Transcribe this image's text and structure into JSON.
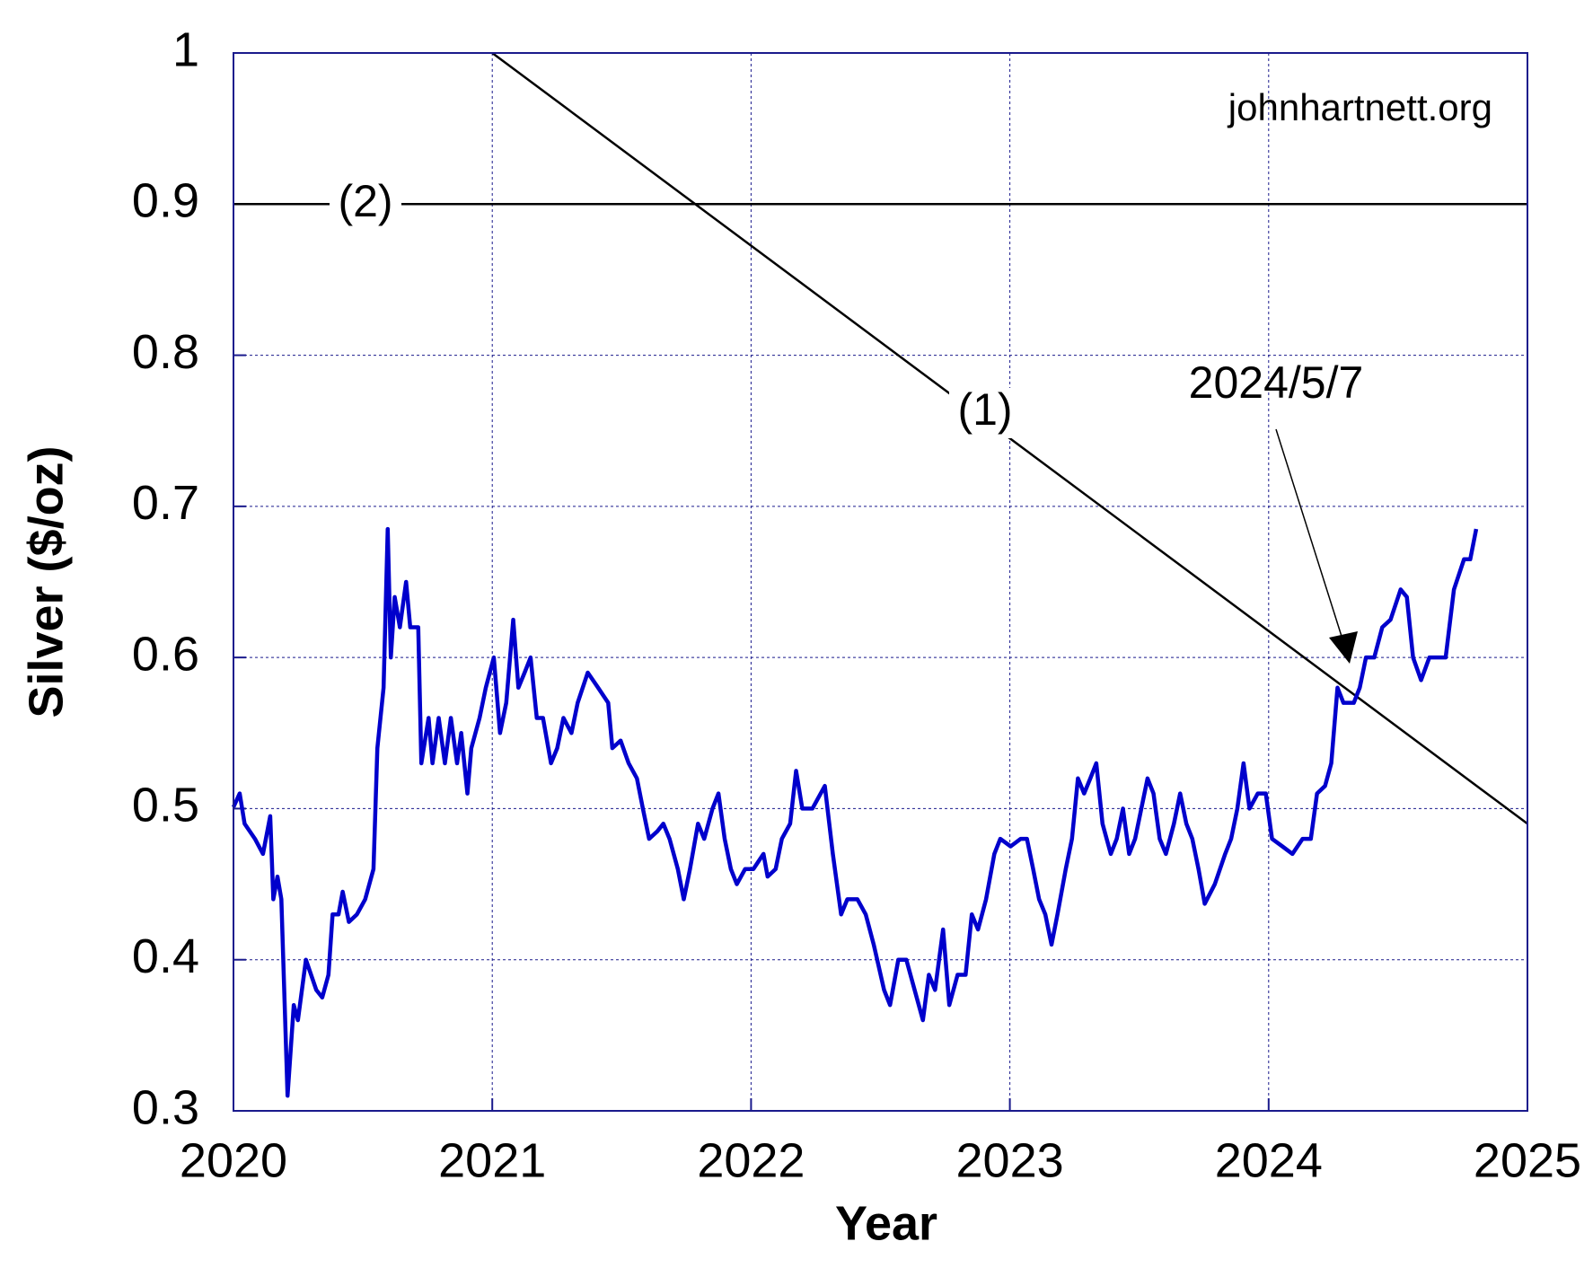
{
  "chart_data": {
    "type": "line",
    "x_label": "Year",
    "y_label": "Silver ($/oz)",
    "xlim": [
      2020,
      2025
    ],
    "ylim": [
      0.3,
      1
    ],
    "xticks": [
      2020,
      2021,
      2022,
      2023,
      2024,
      2025
    ],
    "yticks": [
      0.3,
      0.4,
      0.5,
      0.6,
      0.7,
      0.8,
      0.9,
      1
    ],
    "grid": true,
    "annotations": {
      "source": "johnhartnett.org",
      "date": "2024/5/7"
    },
    "series": [
      {
        "name": "(1)",
        "color": "#000000",
        "x": [
          2021,
          2025
        ],
        "values": [
          1.0,
          0.49
        ]
      },
      {
        "name": "(2)",
        "color": "#000000",
        "x": [
          2020,
          2025
        ],
        "values": [
          0.9,
          0.9
        ]
      },
      {
        "name": "Silver",
        "color": "#0000cc",
        "x": [
          2020.0,
          2020.024,
          2020.043,
          2020.083,
          2020.114,
          2020.142,
          2020.154,
          2020.17,
          2020.185,
          2020.209,
          2020.233,
          2020.249,
          2020.28,
          2020.32,
          2020.343,
          2020.367,
          2020.383,
          2020.406,
          2020.422,
          2020.446,
          2020.477,
          2020.509,
          2020.541,
          2020.556,
          2020.58,
          2020.596,
          2020.608,
          2020.623,
          2020.643,
          2020.667,
          2020.683,
          2020.714,
          2020.726,
          2020.754,
          2020.769,
          2020.793,
          2020.817,
          2020.84,
          2020.864,
          2020.88,
          2020.904,
          2020.919,
          2020.951,
          2020.975,
          2021.006,
          2021.03,
          2021.054,
          2021.081,
          2021.101,
          2021.125,
          2021.148,
          2021.172,
          2021.196,
          2021.227,
          2021.251,
          2021.275,
          2021.306,
          2021.33,
          2021.369,
          2021.409,
          2021.448,
          2021.464,
          2021.496,
          2021.527,
          2021.559,
          2021.582,
          2021.606,
          2021.638,
          2021.661,
          2021.685,
          2021.717,
          2021.74,
          2021.764,
          2021.795,
          2021.819,
          2021.851,
          2021.874,
          2021.898,
          2021.922,
          2021.945,
          2021.977,
          2022.009,
          2022.048,
          2022.064,
          2022.095,
          2022.119,
          2022.151,
          2022.174,
          2022.198,
          2022.237,
          2022.285,
          2022.316,
          2022.348,
          2022.372,
          2022.411,
          2022.443,
          2022.474,
          2022.514,
          2022.537,
          2022.569,
          2022.6,
          2022.632,
          2022.664,
          2022.687,
          2022.711,
          2022.742,
          2022.766,
          2022.798,
          2022.829,
          2022.853,
          2022.877,
          2022.908,
          2022.94,
          2022.963,
          2023.003,
          2023.042,
          2023.066,
          2023.09,
          2023.113,
          2023.137,
          2023.161,
          2023.184,
          2023.216,
          2023.24,
          2023.263,
          2023.287,
          2023.311,
          2023.334,
          2023.358,
          2023.39,
          2023.413,
          2023.437,
          2023.461,
          2023.484,
          2023.508,
          2023.532,
          2023.555,
          2023.579,
          2023.603,
          2023.634,
          2023.658,
          2023.682,
          2023.705,
          2023.729,
          2023.753,
          2023.792,
          2023.832,
          2023.855,
          2023.879,
          2023.903,
          2023.926,
          2023.958,
          2023.989,
          2024.013,
          2024.053,
          2024.092,
          2024.131,
          2024.163,
          2024.187,
          2024.218,
          2024.242,
          2024.266,
          2024.289,
          2024.329,
          2024.352,
          2024.376,
          2024.408,
          2024.439,
          2024.471,
          2024.51,
          2024.534,
          2024.558,
          2024.589,
          2024.621,
          2024.652,
          2024.684,
          2024.716,
          2024.755,
          2024.779,
          2024.802
        ],
        "values": [
          0.501,
          0.51,
          0.49,
          0.48,
          0.47,
          0.495,
          0.44,
          0.455,
          0.44,
          0.31,
          0.37,
          0.36,
          0.4,
          0.38,
          0.375,
          0.39,
          0.43,
          0.43,
          0.445,
          0.425,
          0.43,
          0.44,
          0.46,
          0.54,
          0.58,
          0.685,
          0.6,
          0.64,
          0.62,
          0.65,
          0.62,
          0.62,
          0.53,
          0.56,
          0.53,
          0.56,
          0.53,
          0.56,
          0.53,
          0.55,
          0.51,
          0.54,
          0.56,
          0.58,
          0.6,
          0.55,
          0.57,
          0.625,
          0.58,
          0.59,
          0.6,
          0.56,
          0.56,
          0.53,
          0.54,
          0.56,
          0.55,
          0.57,
          0.59,
          0.58,
          0.57,
          0.54,
          0.545,
          0.53,
          0.52,
          0.5,
          0.48,
          0.485,
          0.49,
          0.48,
          0.46,
          0.44,
          0.46,
          0.49,
          0.48,
          0.5,
          0.51,
          0.48,
          0.46,
          0.45,
          0.46,
          0.46,
          0.47,
          0.455,
          0.46,
          0.48,
          0.49,
          0.525,
          0.5,
          0.5,
          0.515,
          0.47,
          0.43,
          0.44,
          0.44,
          0.43,
          0.41,
          0.38,
          0.37,
          0.4,
          0.4,
          0.38,
          0.36,
          0.39,
          0.38,
          0.42,
          0.37,
          0.39,
          0.39,
          0.43,
          0.42,
          0.44,
          0.47,
          0.48,
          0.475,
          0.48,
          0.48,
          0.46,
          0.44,
          0.43,
          0.41,
          0.43,
          0.46,
          0.48,
          0.52,
          0.51,
          0.52,
          0.53,
          0.49,
          0.47,
          0.48,
          0.5,
          0.47,
          0.48,
          0.5,
          0.52,
          0.51,
          0.48,
          0.47,
          0.49,
          0.51,
          0.49,
          0.48,
          0.46,
          0.437,
          0.45,
          0.47,
          0.48,
          0.5,
          0.53,
          0.5,
          0.51,
          0.51,
          0.48,
          0.475,
          0.47,
          0.48,
          0.48,
          0.51,
          0.515,
          0.53,
          0.58,
          0.57,
          0.57,
          0.58,
          0.6,
          0.6,
          0.62,
          0.625,
          0.645,
          0.64,
          0.6,
          0.585,
          0.6,
          0.6,
          0.6,
          0.645,
          0.665,
          0.665,
          0.685
        ]
      }
    ]
  }
}
